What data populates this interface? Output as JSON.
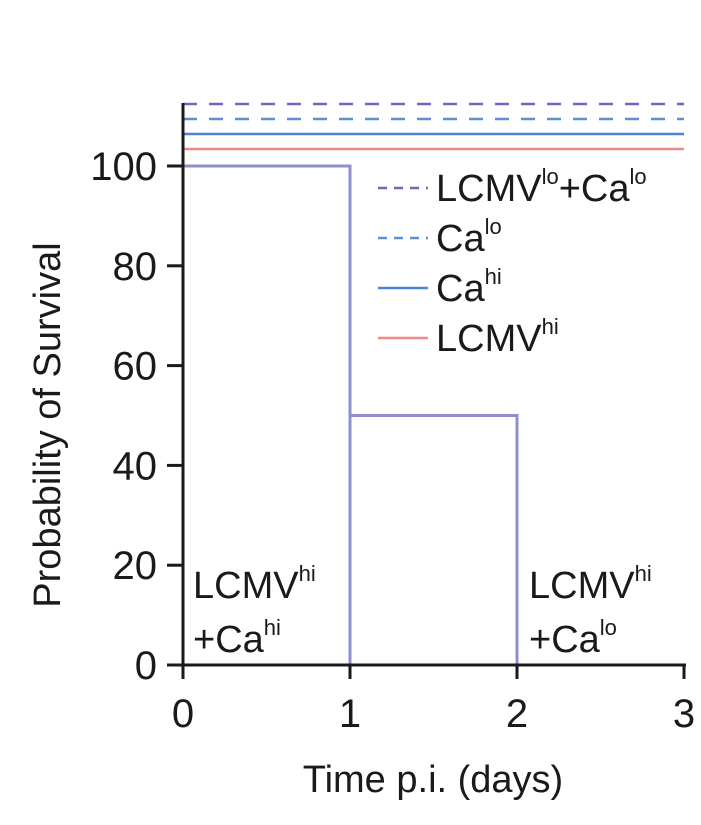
{
  "chart_data": {
    "type": "line",
    "xlabel": "Time p.i. (days)",
    "ylabel": "Probability of Survival",
    "xlim": [
      0,
      3
    ],
    "ylim": [
      0,
      100
    ],
    "x_ticks": [
      "0",
      "1",
      "2",
      "3"
    ],
    "y_ticks": [
      "0",
      "20",
      "40",
      "60",
      "80",
      "100"
    ],
    "series": [
      {
        "name": "LCMVᴴᶦ+Caᴴᶦ",
        "color": "#8f8fcf",
        "dash": "solid",
        "x": [
          0,
          1,
          1,
          3
        ],
        "y": [
          100,
          100,
          0,
          0
        ]
      },
      {
        "name": "LCMVᴴᶦ+Caˡᵒ",
        "color": "#8f8fcf",
        "dash": "solid",
        "x": [
          0,
          1,
          1,
          2,
          2,
          3
        ],
        "y": [
          100,
          100,
          50,
          50,
          0,
          0
        ]
      }
    ],
    "legend": {
      "placement": "top-right",
      "entries": [
        {
          "main": "LCMV",
          "sup": "lo",
          "main2": "+Ca",
          "sup2": "lo",
          "color": "#6a68c4",
          "dash": "dashed"
        },
        {
          "main": "Ca",
          "sup": "lo",
          "main2": "",
          "sup2": "",
          "color": "#5b8fd6",
          "dash": "dashed"
        },
        {
          "main": "Ca",
          "sup": "hi",
          "main2": "",
          "sup2": "",
          "color": "#4a84d8",
          "dash": "solid"
        },
        {
          "main": "LCMV",
          "sup": "hi",
          "main2": "",
          "sup2": "",
          "color": "#ee8a8a",
          "dash": "solid"
        }
      ]
    },
    "annotations": [
      {
        "line1": "LCMV",
        "line1_sup": "hi",
        "line2": "+Ca",
        "line2_sup": "hi"
      },
      {
        "line1": "LCMV",
        "line1_sup": "hi",
        "line2": "+Ca",
        "line2_sup": "lo"
      }
    ],
    "grid": false
  }
}
